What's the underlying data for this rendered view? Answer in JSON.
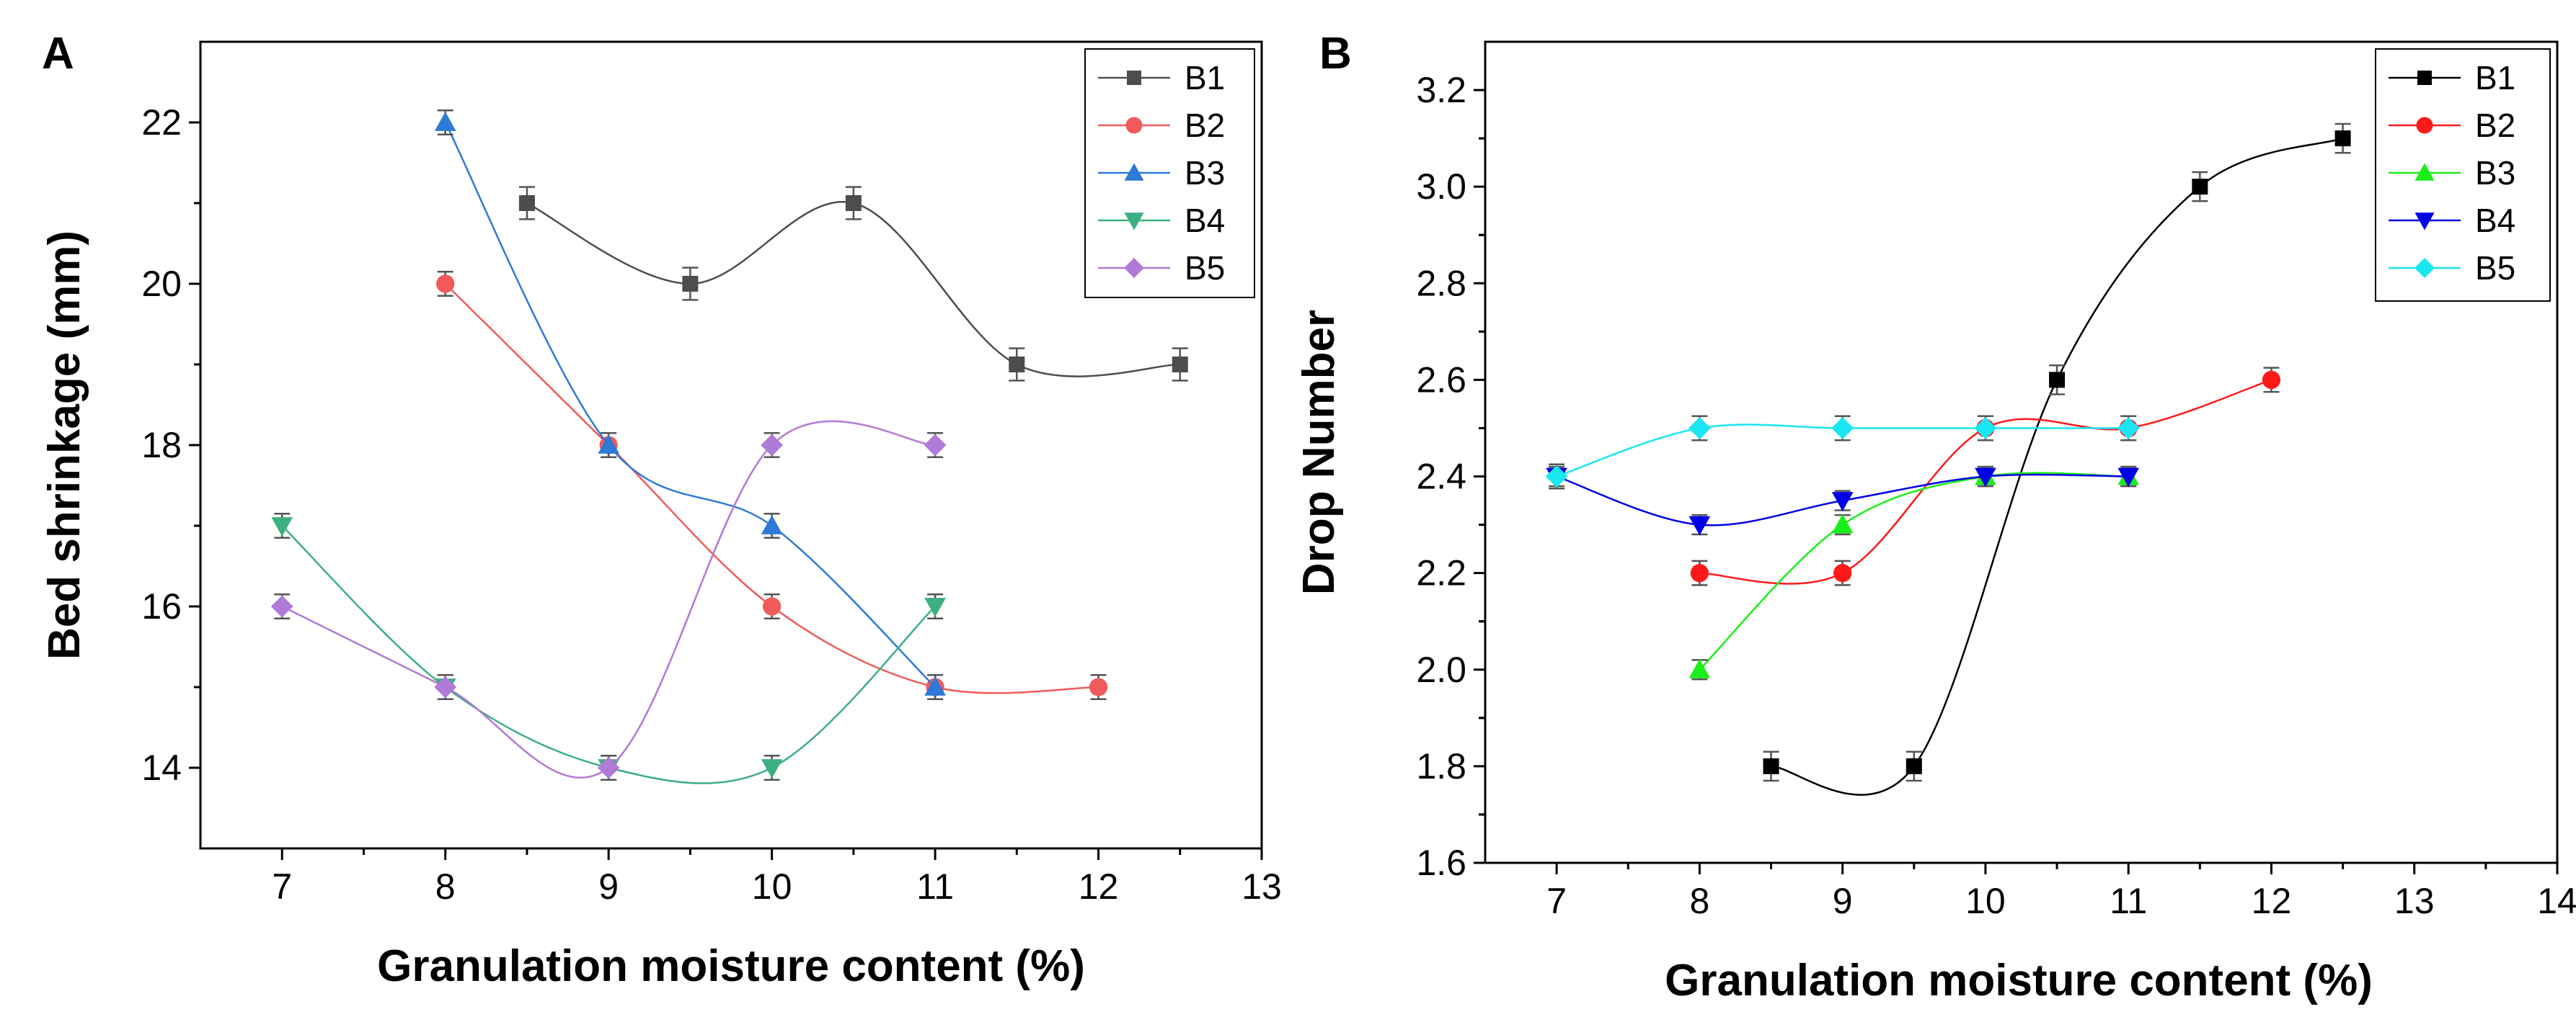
{
  "chart_data": [
    {
      "panel": "A",
      "type": "line",
      "title": "",
      "xlabel": "Granulation moisture content (%)",
      "ylabel": "Bed shrinkage (mm)",
      "xlim": [
        6.5,
        13
      ],
      "ylim": [
        13,
        23
      ],
      "xticks": [
        "7",
        "8",
        "9",
        "10",
        "11",
        "12",
        "13"
      ],
      "xtick_values": [
        7,
        8,
        9,
        10,
        11,
        12,
        13
      ],
      "yticks": [
        "14",
        "16",
        "18",
        "20",
        "22"
      ],
      "ytick_values": [
        14,
        16,
        18,
        20,
        22
      ],
      "legend_position": "top-right",
      "series": [
        {
          "name": "B1",
          "color": "#4d4d4d",
          "marker": "square",
          "error": 0.2,
          "x": [
            8.5,
            9.5,
            10.5,
            11.5,
            12.5
          ],
          "y": [
            21,
            20,
            21,
            19,
            19
          ]
        },
        {
          "name": "B2",
          "color": "#f05a5a",
          "marker": "circle",
          "error": 0.15,
          "x": [
            8,
            9,
            10,
            11,
            12
          ],
          "y": [
            20,
            18,
            16,
            15,
            15
          ]
        },
        {
          "name": "B3",
          "color": "#2e7ad6",
          "marker": "triangle-up",
          "error": 0.15,
          "x": [
            8,
            9,
            10,
            11
          ],
          "y": [
            22,
            18,
            17,
            15
          ]
        },
        {
          "name": "B4",
          "color": "#3caf80",
          "marker": "triangle-down",
          "error": 0.15,
          "x": [
            7,
            8,
            9,
            10,
            11
          ],
          "y": [
            17,
            15,
            14,
            14,
            16
          ]
        },
        {
          "name": "B5",
          "color": "#b07ad8",
          "marker": "diamond",
          "error": 0.15,
          "x": [
            7,
            8,
            9,
            10,
            11
          ],
          "y": [
            16,
            15,
            14,
            18,
            18
          ]
        }
      ]
    },
    {
      "panel": "B",
      "type": "line",
      "title": "",
      "xlabel": "Granulation moisture content (%)",
      "ylabel": "Drop Number",
      "xlim": [
        6.5,
        14
      ],
      "ylim": [
        1.6,
        3.3
      ],
      "xticks": [
        "7",
        "8",
        "9",
        "10",
        "11",
        "12",
        "13",
        "14"
      ],
      "xtick_values": [
        7,
        8,
        9,
        10,
        11,
        12,
        13,
        14
      ],
      "yticks": [
        "1.6",
        "1.8",
        "2.0",
        "2.2",
        "2.4",
        "2.6",
        "2.8",
        "3.0",
        "3.2"
      ],
      "ytick_values": [
        1.6,
        1.8,
        2.0,
        2.2,
        2.4,
        2.6,
        2.8,
        3.0,
        3.2
      ],
      "legend_position": "top-right",
      "series": [
        {
          "name": "B1",
          "color": "#000000",
          "marker": "square",
          "error": 0.03,
          "x": [
            8.5,
            9.5,
            10.5,
            11.5,
            12.5
          ],
          "y": [
            1.8,
            1.8,
            2.6,
            3.0,
            3.1
          ]
        },
        {
          "name": "B2",
          "color": "#ff1a1a",
          "marker": "circle",
          "error": 0.025,
          "x": [
            8,
            9,
            10,
            11,
            12
          ],
          "y": [
            2.2,
            2.2,
            2.5,
            2.5,
            2.6
          ]
        },
        {
          "name": "B3",
          "color": "#1aee1a",
          "marker": "triangle-up",
          "error": 0.02,
          "x": [
            8,
            9,
            10,
            11
          ],
          "y": [
            2.0,
            2.3,
            2.4,
            2.4
          ]
        },
        {
          "name": "B4",
          "color": "#0000e6",
          "marker": "triangle-down",
          "error": 0.02,
          "x": [
            7,
            8,
            9,
            10,
            11
          ],
          "y": [
            2.4,
            2.3,
            2.35,
            2.4,
            2.4
          ]
        },
        {
          "name": "B5",
          "color": "#1ae6f2",
          "marker": "diamond",
          "error": 0.025,
          "x": [
            7,
            8,
            9,
            10,
            11
          ],
          "y": [
            2.4,
            2.5,
            2.5,
            2.5,
            2.5
          ]
        }
      ]
    }
  ]
}
